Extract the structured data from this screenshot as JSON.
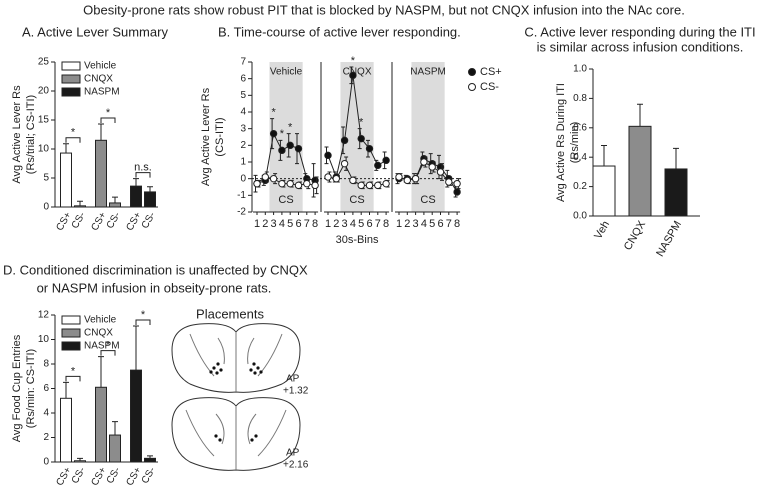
{
  "title": "Obesity-prone rats show robust PIT that is blocked by NASPM, but not CNQX infusion into the NAc core.",
  "chart_data": [
    {
      "type": "bar",
      "title": [
        "A. Active Lever Summary"
      ],
      "ylabel": [
        "Avg Active Lever Rs",
        "(Rs/trial; CS-ITI)"
      ],
      "categories": [
        "CS+",
        "CS-"
      ],
      "series": [
        {
          "name": "Vehicle",
          "color": "#ffffff",
          "values": [
            9.3,
            0.2
          ],
          "errors": [
            1.6,
            0.8
          ]
        },
        {
          "name": "CNQX",
          "color": "#8c8c8c",
          "values": [
            11.5,
            0.7
          ],
          "errors": [
            2.8,
            1.0
          ]
        },
        {
          "name": "NASPM",
          "color": "#1a1a1a",
          "values": [
            3.6,
            2.6
          ],
          "errors": [
            1.3,
            0.9
          ]
        }
      ],
      "annotations": [
        "*",
        "*",
        "n.s."
      ],
      "ylim": [
        0,
        25
      ],
      "yticks": [
        0,
        5,
        10,
        15,
        20,
        25
      ]
    },
    {
      "type": "line",
      "title": [
        "B. Time-course of active lever responding."
      ],
      "ylabel": [
        "Avg Active Lever Rs",
        "(CS-ITI)"
      ],
      "xlabel": "30s-Bins",
      "groups": [
        "Vehicle",
        "CNQX",
        "NASPM"
      ],
      "shade_label": "CS",
      "x": [
        1,
        2,
        3,
        4,
        5,
        6,
        7,
        8
      ],
      "xticks": [
        1,
        2,
        3,
        4,
        5,
        6,
        7,
        8
      ],
      "series": [
        {
          "name": "CS+",
          "color": "#111111",
          "values": [
            [
              -0.3,
              -0.1,
              2.7,
              1.7,
              2.0,
              1.8,
              0.0,
              -0.1
            ],
            [
              1.4,
              0.1,
              2.3,
              6.2,
              2.4,
              1.8,
              0.8,
              1.1
            ],
            [
              0.0,
              0.0,
              0.0,
              1.2,
              0.9,
              0.7,
              0.0,
              -0.8
            ]
          ],
          "errors": [
            [
              0.5,
              0.3,
              0.9,
              0.6,
              0.7,
              0.9,
              0.3,
              1.0
            ],
            [
              0.5,
              0.3,
              0.8,
              0.5,
              0.6,
              0.5,
              0.3,
              0.5
            ],
            [
              0.3,
              0.2,
              0.3,
              0.4,
              0.6,
              0.7,
              0.5,
              0.3
            ]
          ]
        },
        {
          "name": "CS-",
          "color": "#ffffff",
          "values": [
            [
              -0.3,
              0.1,
              0.0,
              -0.3,
              -0.3,
              -0.4,
              -0.3,
              -0.4
            ],
            [
              0.1,
              0.0,
              0.9,
              -0.1,
              -0.4,
              -0.4,
              -0.4,
              -0.3
            ],
            [
              0.1,
              -0.1,
              0.0,
              1.0,
              0.7,
              0.4,
              -0.2,
              -0.3
            ]
          ],
          "errors": [
            [
              0.2,
              0.3,
              0.3,
              0.2,
              0.2,
              0.2,
              0.3,
              0.5
            ],
            [
              0.3,
              0.2,
              0.4,
              0.2,
              0.2,
              0.2,
              0.2,
              0.2
            ],
            [
              0.2,
              0.2,
              0.3,
              0.3,
              0.3,
              0.5,
              0.2,
              0.3
            ]
          ]
        }
      ],
      "annotations": [
        "*",
        "*",
        "*",
        "*",
        "*"
      ],
      "ylim": [
        -2,
        7
      ],
      "yticks": [
        -2,
        -1,
        0,
        1,
        2,
        3,
        4,
        5,
        6,
        7
      ]
    },
    {
      "type": "bar",
      "title": [
        "C. Active lever responding during the ITI",
        "is similar across infusion conditions."
      ],
      "ylabel": [
        "Avg  Active Rs During ITI",
        "(Rs/min)"
      ],
      "categories": [
        "Veh",
        "CNQX",
        "NASPM"
      ],
      "values": [
        0.34,
        0.61,
        0.32
      ],
      "errors": [
        0.14,
        0.15,
        0.14
      ],
      "colors": [
        "#ffffff",
        "#8c8c8c",
        "#1a1a1a"
      ],
      "ylim": [
        0,
        1
      ],
      "yticks": [
        {
          "value": 0,
          "label": "0.0"
        },
        0.2,
        0.4,
        0.6,
        0.8,
        {
          "value": 1,
          "label": "1.0"
        }
      ]
    },
    {
      "type": "bar",
      "title": [
        "D. Conditioned discrimination is unaffected by CNQX",
        "or NASPM infusion in obseity-prone rats."
      ],
      "ylabel": [
        "Avg Food Cup Entries",
        "(Rs/min: CS-ITI)"
      ],
      "categories": [
        "CS+",
        "CS-"
      ],
      "series": [
        {
          "name": "Vehicle",
          "color": "#ffffff",
          "values": [
            5.2,
            0.1
          ],
          "errors": [
            1.3,
            0.2
          ]
        },
        {
          "name": "CNQX",
          "color": "#8c8c8c",
          "values": [
            6.1,
            2.2
          ],
          "errors": [
            2.5,
            1.1
          ]
        },
        {
          "name": "NASPM",
          "color": "#1a1a1a",
          "values": [
            7.5,
            0.3
          ],
          "errors": [
            3.6,
            0.2
          ]
        }
      ],
      "annotations": [
        "*",
        "*",
        "*"
      ],
      "ylim": [
        0,
        12
      ],
      "yticks": [
        0,
        2,
        4,
        6,
        8,
        10,
        12
      ]
    }
  ],
  "placements": {
    "title": "Placements",
    "sections": [
      [
        "AP",
        "+1.32"
      ],
      [
        "AP",
        "+2.16"
      ]
    ]
  }
}
